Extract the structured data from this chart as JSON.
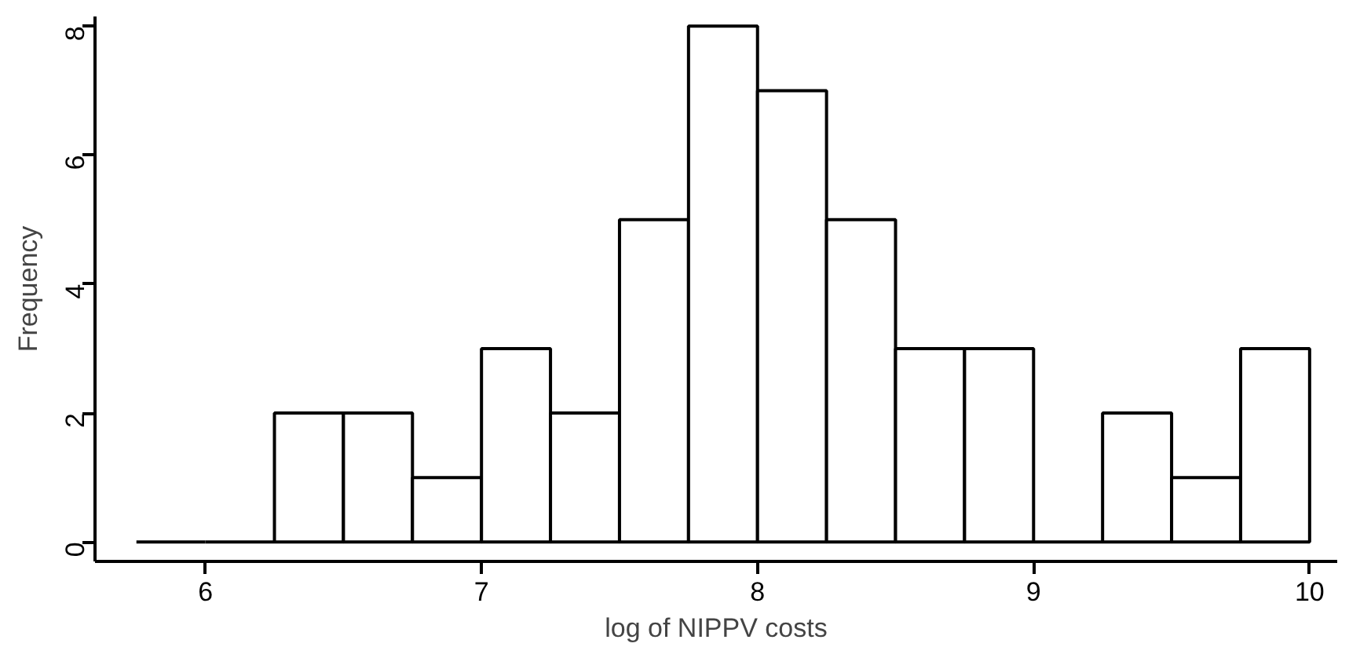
{
  "chart_data": {
    "type": "histogram",
    "xlabel": "log of NIPPV costs",
    "ylabel": "Frequency",
    "bins": [
      5.75,
      6,
      6.25,
      6.5,
      6.75,
      7,
      7.25,
      7.5,
      7.75,
      8,
      8.25,
      8.5,
      8.75,
      9,
      9.25,
      9.5,
      9.75,
      10
    ],
    "values": [
      0,
      0,
      2,
      2,
      1,
      3,
      2,
      5,
      8,
      7,
      5,
      3,
      3,
      0,
      2,
      1,
      3
    ],
    "xlim": [
      5.6,
      10.1
    ],
    "ylim": [
      -0.3,
      8.15
    ],
    "xticks": [
      6,
      7,
      8,
      9,
      10
    ],
    "yticks": [
      0,
      2,
      4,
      6,
      8
    ],
    "grid": false
  }
}
